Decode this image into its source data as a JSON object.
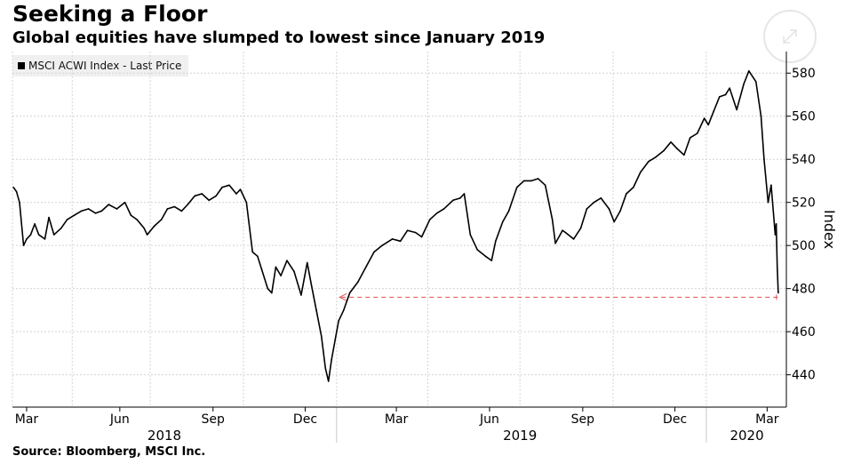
{
  "header": {
    "title": "Seeking a Floor",
    "subtitle": "Global equities have slumped to lowest since January 2019"
  },
  "source": "Source: Bloomberg, MSCI Inc.",
  "icons": {
    "expand": "expand-arrows-icon"
  },
  "chart_data": {
    "type": "line",
    "title": "Seeking a Floor",
    "subtitle": "Global equities have slumped to lowest since January 2019",
    "ylabel": "Index",
    "xlabel": "",
    "ylim": [
      425,
      590
    ],
    "y_ticks": [
      440,
      460,
      480,
      500,
      520,
      540,
      560,
      580
    ],
    "y_axis_side": "right",
    "grid": true,
    "legend_placement": "top-left",
    "x_month_ticks": [
      "Mar",
      "Jun",
      "Sep",
      "Dec",
      "Mar",
      "Jun",
      "Sep",
      "Dec",
      "Mar"
    ],
    "x_year_labels": [
      "2018",
      "2019",
      "2020"
    ],
    "line_color": "#000000",
    "reference_color": "#e05050",
    "series": [
      {
        "name": "MSCI ACWI Index - Last Price",
        "x": [
          "2018-02-16",
          "2018-02-19",
          "2018-02-22",
          "2018-02-26",
          "2018-03-01",
          "2018-03-05",
          "2018-03-09",
          "2018-03-13",
          "2018-03-19",
          "2018-03-23",
          "2018-03-28",
          "2018-04-04",
          "2018-04-10",
          "2018-04-17",
          "2018-04-24",
          "2018-05-01",
          "2018-05-08",
          "2018-05-14",
          "2018-05-21",
          "2018-05-29",
          "2018-06-06",
          "2018-06-12",
          "2018-06-18",
          "2018-06-25",
          "2018-06-28",
          "2018-07-05",
          "2018-07-12",
          "2018-07-18",
          "2018-07-25",
          "2018-08-01",
          "2018-08-07",
          "2018-08-14",
          "2018-08-21",
          "2018-08-28",
          "2018-09-04",
          "2018-09-10",
          "2018-09-17",
          "2018-09-24",
          "2018-09-28",
          "2018-10-04",
          "2018-10-10",
          "2018-10-15",
          "2018-10-19",
          "2018-10-25",
          "2018-10-29",
          "2018-11-02",
          "2018-11-07",
          "2018-11-13",
          "2018-11-20",
          "2018-11-27",
          "2018-12-03",
          "2018-12-07",
          "2018-12-12",
          "2018-12-17",
          "2018-12-21",
          "2018-12-24",
          "2018-12-27",
          "2019-01-03",
          "2019-01-08",
          "2019-01-14",
          "2019-01-22",
          "2019-01-30",
          "2019-02-07",
          "2019-02-15",
          "2019-02-25",
          "2019-03-05",
          "2019-03-12",
          "2019-03-20",
          "2019-03-26",
          "2019-04-03",
          "2019-04-10",
          "2019-04-17",
          "2019-04-26",
          "2019-05-03",
          "2019-05-07",
          "2019-05-13",
          "2019-05-20",
          "2019-05-28",
          "2019-06-03",
          "2019-06-07",
          "2019-06-14",
          "2019-06-20",
          "2019-06-28",
          "2019-07-05",
          "2019-07-12",
          "2019-07-19",
          "2019-07-26",
          "2019-08-02",
          "2019-08-05",
          "2019-08-12",
          "2019-08-15",
          "2019-08-23",
          "2019-08-30",
          "2019-09-05",
          "2019-09-12",
          "2019-09-19",
          "2019-09-27",
          "2019-10-02",
          "2019-10-08",
          "2019-10-14",
          "2019-10-21",
          "2019-10-28",
          "2019-11-05",
          "2019-11-12",
          "2019-11-20",
          "2019-11-27",
          "2019-12-03",
          "2019-12-10",
          "2019-12-16",
          "2019-12-23",
          "2019-12-30",
          "2020-01-03",
          "2020-01-08",
          "2020-01-14",
          "2020-01-20",
          "2020-01-24",
          "2020-01-31",
          "2020-02-07",
          "2020-02-12",
          "2020-02-19",
          "2020-02-24",
          "2020-02-27",
          "2020-03-02",
          "2020-03-05",
          "2020-03-09",
          "2020-03-10",
          "2020-03-11",
          "2020-03-12"
        ],
        "values": [
          527,
          525,
          520,
          500,
          503,
          505,
          510,
          505,
          503,
          513,
          505,
          508,
          512,
          514,
          516,
          517,
          515,
          516,
          519,
          517,
          520,
          514,
          512,
          508,
          505,
          509,
          512,
          517,
          518,
          516,
          519,
          523,
          524,
          521,
          523,
          527,
          528,
          524,
          526,
          520,
          497,
          495,
          489,
          480,
          478,
          490,
          486,
          493,
          488,
          477,
          492,
          482,
          470,
          458,
          443,
          437,
          447,
          465,
          470,
          478,
          483,
          490,
          497,
          500,
          503,
          502,
          507,
          506,
          504,
          512,
          515,
          517,
          521,
          522,
          524,
          505,
          498,
          495,
          493,
          502,
          511,
          516,
          527,
          530,
          530,
          531,
          528,
          512,
          501,
          507,
          506,
          503,
          508,
          517,
          520,
          522,
          517,
          511,
          516,
          524,
          527,
          534,
          539,
          541,
          544,
          548,
          545,
          542,
          550,
          552,
          559,
          556,
          562,
          569,
          570,
          573,
          563,
          575,
          581,
          576,
          560,
          540,
          520,
          528,
          505,
          510,
          490,
          478
        ],
        "last_price": 478
      }
    ],
    "reference_line": {
      "value": 476,
      "from": "2019-01-04",
      "to": "2020-03-12",
      "style": "dashed",
      "arrow": "left"
    }
  }
}
